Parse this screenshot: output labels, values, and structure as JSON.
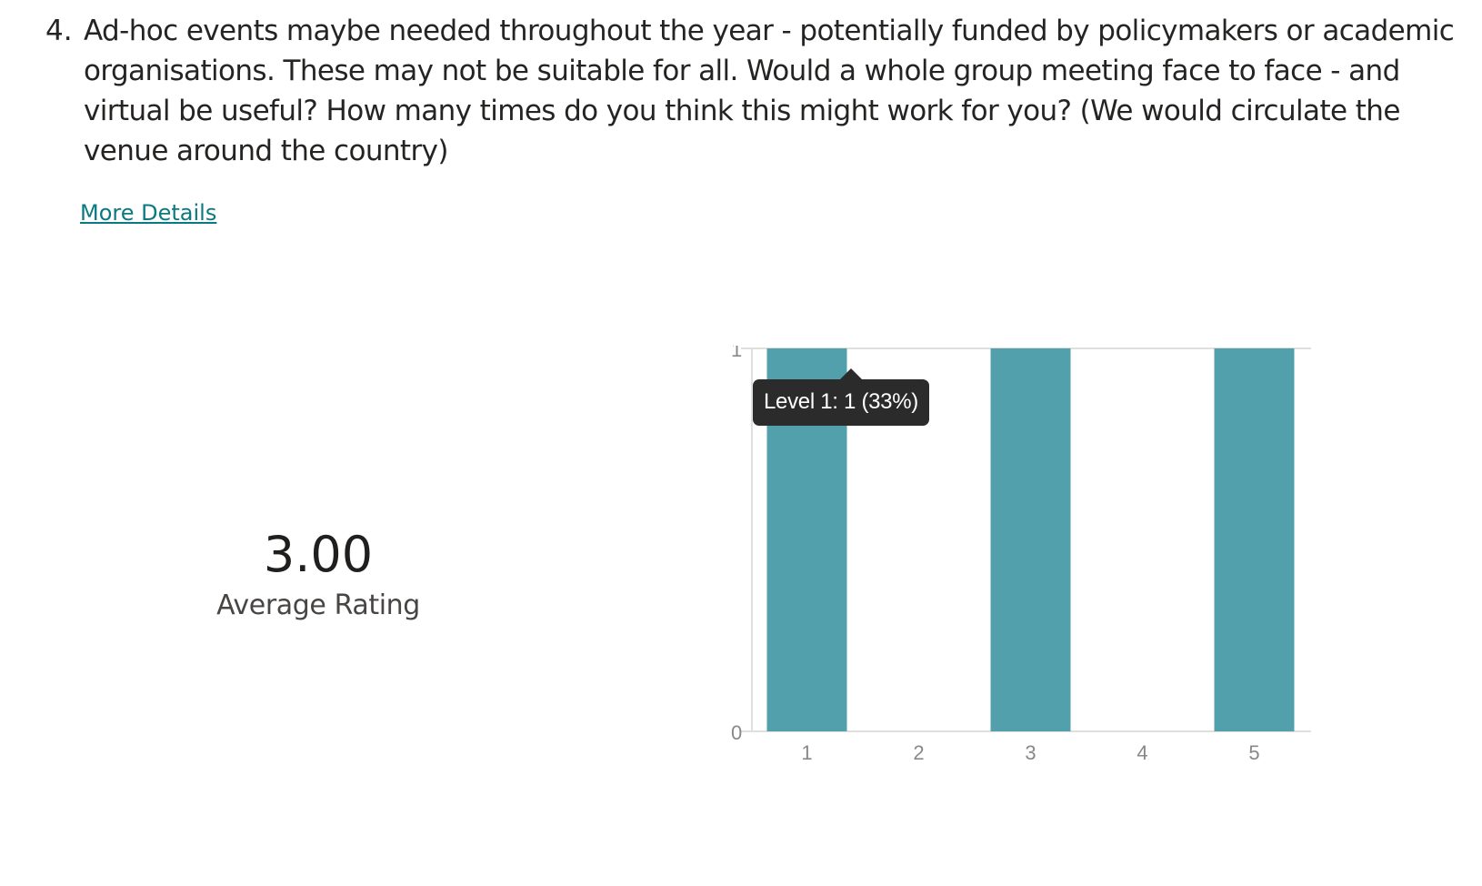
{
  "question": {
    "number": "4.",
    "text": "Ad-hoc events maybe needed throughout the year - potentially funded by policymakers or academic organisations. These may not be suitable for all. Would a whole group meeting face to face - and virtual be useful? How many times do you think this might work for you? (We would circulate the venue around the country)"
  },
  "more_details_label": "More Details",
  "summary": {
    "value": "3.00",
    "label": "Average Rating"
  },
  "tooltip": {
    "text": "Level 1: 1 (33%)"
  },
  "colors": {
    "bar": "#52a0ab",
    "link": "#0b7a80",
    "tooltip_bg": "#2b2b2b",
    "grid": "#e1dfdd"
  },
  "chart_data": {
    "type": "bar",
    "categories": [
      "1",
      "2",
      "3",
      "4",
      "5"
    ],
    "values": [
      1,
      0,
      1,
      0,
      1
    ],
    "ylim": [
      0,
      1
    ],
    "yticks": [
      "0",
      "1"
    ],
    "title": "",
    "xlabel": "",
    "ylabel": "",
    "grid": true
  }
}
